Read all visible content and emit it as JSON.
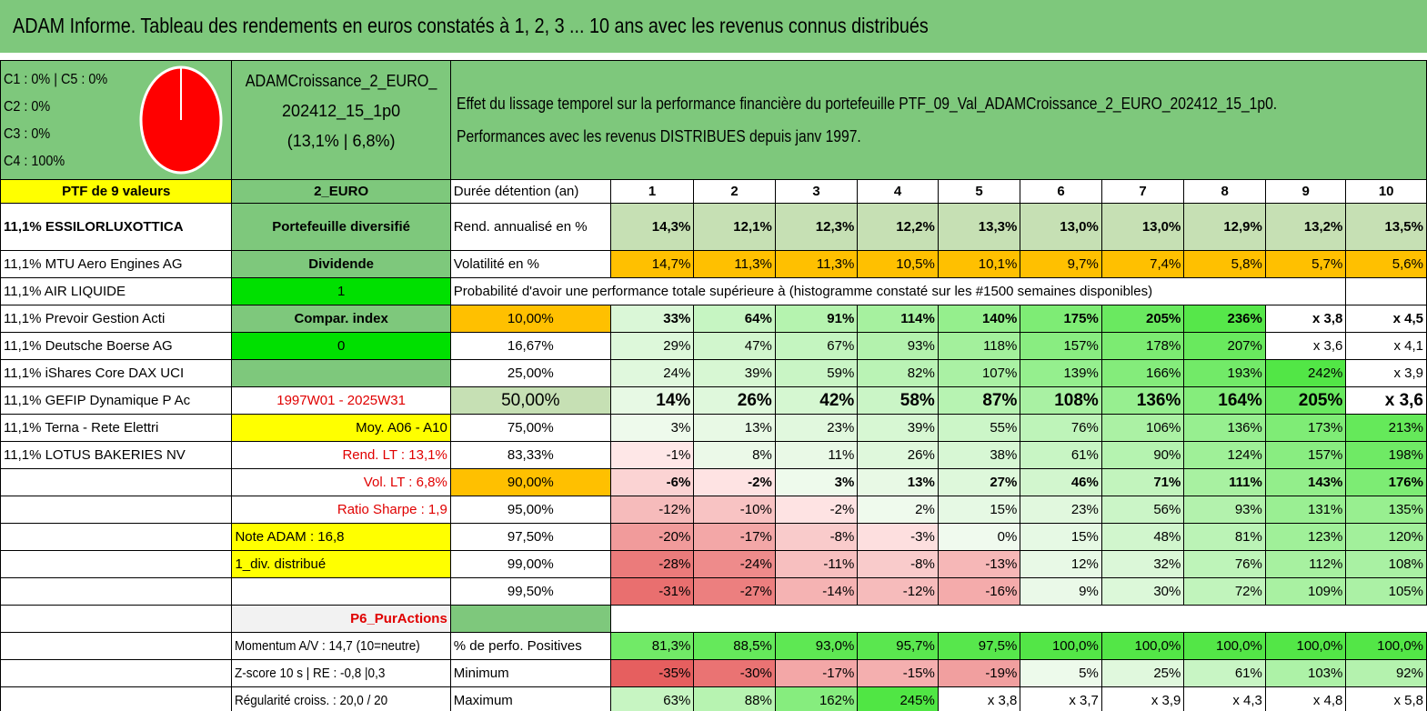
{
  "title": "ADAM Informe. Tableau des rendements en euros constatés à 1, 2, 3 ... 10 ans avec les revenus connus distribués",
  "pie": {
    "legend": [
      "C1 : 0% | C5 : 0%",
      "C2 : 0%",
      "C3 : 0%",
      "C4 : 100%"
    ],
    "colors": {
      "fill": "#ff0000",
      "stroke": "#ffffff"
    }
  },
  "portfolio": {
    "name_line1": "ADAMCroissance_2_EURO_",
    "name_line2": "202412_15_1p0",
    "name_line3": "(13,1% | 6,8%)"
  },
  "effect": {
    "line1": "Effet du lissage temporel sur la performance financière du portefeuille PTF_09_Val_ADAMCroissance_2_EURO_202412_15_1p0.",
    "line2": "Performances avec les revenus DISTRIBUES depuis janv 1997."
  },
  "years": [
    "1",
    "2",
    "3",
    "4",
    "5",
    "6",
    "7",
    "8",
    "9",
    "10"
  ],
  "left_col": [
    "PTF de 9 valeurs",
    "11,1% ESSILORLUXOTTICA",
    "11,1% MTU Aero Engines AG",
    "11,1% AIR LIQUIDE",
    "11,1% Prevoir Gestion Acti",
    "11,1% Deutsche Boerse AG",
    "11,1% iShares Core DAX UCI",
    "11,1% GEFIP Dynamique P Ac",
    "11,1% Terna - Rete Elettri",
    "11,1% LOTUS BAKERIES NV"
  ],
  "mid_col": [
    "2_EURO",
    "Portefeuille diversifié",
    "Dividende",
    "1",
    "Compar. index",
    "0",
    "",
    "1997W01 - 2025W31",
    "Moy. A06 - A10",
    "Rend. LT : 13,1%",
    "Vol. LT : 6,8%",
    "Ratio Sharpe : 1,9",
    "Note ADAM : 16,8",
    "1_div. distribué",
    "",
    "P6_PurActions",
    "Momentum A/V : 14,7 (10=neutre)",
    "Z-score 10 s | RE : -0,8 |0,3",
    "Régularité croiss. : 20,0 / 20"
  ],
  "labels": {
    "duration": "Durée détention (an)",
    "rend": "Rend. annualisé en %",
    "vol": "Volatilité en %",
    "proba": "Probabilité d'avoir une performance totale supérieure à (histogramme constaté sur les #1500 semaines disponibles)",
    "positives": "% de perfo. Positives",
    "minimum": "Minimum",
    "maximum": "Maximum"
  },
  "rend": [
    "14,3%",
    "12,1%",
    "12,3%",
    "12,2%",
    "13,3%",
    "13,0%",
    "13,0%",
    "12,9%",
    "13,2%",
    "13,5%"
  ],
  "vol": [
    "14,7%",
    "11,3%",
    "11,3%",
    "10,5%",
    "10,1%",
    "9,7%",
    "7,4%",
    "5,8%",
    "5,7%",
    "5,6%"
  ],
  "prob_rows": [
    {
      "p": "10,00%",
      "v": [
        "33%",
        "64%",
        "91%",
        "114%",
        "140%",
        "175%",
        "205%",
        "236%",
        "x 3,8",
        "x 4,5"
      ]
    },
    {
      "p": "16,67%",
      "v": [
        "29%",
        "47%",
        "67%",
        "93%",
        "118%",
        "157%",
        "178%",
        "207%",
        "x 3,6",
        "x 4,1"
      ]
    },
    {
      "p": "25,00%",
      "v": [
        "24%",
        "39%",
        "59%",
        "82%",
        "107%",
        "139%",
        "166%",
        "193%",
        "242%",
        "x 3,9"
      ]
    },
    {
      "p": "50,00%",
      "v": [
        "14%",
        "26%",
        "42%",
        "58%",
        "87%",
        "108%",
        "136%",
        "164%",
        "205%",
        "x 3,6"
      ]
    },
    {
      "p": "75,00%",
      "v": [
        "3%",
        "13%",
        "23%",
        "39%",
        "55%",
        "76%",
        "106%",
        "136%",
        "173%",
        "213%"
      ]
    },
    {
      "p": "83,33%",
      "v": [
        "-1%",
        "8%",
        "11%",
        "26%",
        "38%",
        "61%",
        "90%",
        "124%",
        "157%",
        "198%"
      ]
    },
    {
      "p": "90,00%",
      "v": [
        "-6%",
        "-2%",
        "3%",
        "13%",
        "27%",
        "46%",
        "71%",
        "111%",
        "143%",
        "176%"
      ]
    },
    {
      "p": "95,00%",
      "v": [
        "-12%",
        "-10%",
        "-2%",
        "2%",
        "15%",
        "23%",
        "56%",
        "93%",
        "131%",
        "135%"
      ]
    },
    {
      "p": "97,50%",
      "v": [
        "-20%",
        "-17%",
        "-8%",
        "-3%",
        "0%",
        "15%",
        "48%",
        "81%",
        "123%",
        "120%"
      ]
    },
    {
      "p": "99,00%",
      "v": [
        "-28%",
        "-24%",
        "-11%",
        "-8%",
        "-13%",
        "12%",
        "32%",
        "76%",
        "112%",
        "108%"
      ]
    },
    {
      "p": "99,50%",
      "v": [
        "-31%",
        "-27%",
        "-14%",
        "-12%",
        "-16%",
        "9%",
        "30%",
        "72%",
        "109%",
        "105%"
      ]
    }
  ],
  "positives": [
    "81,3%",
    "88,5%",
    "93,0%",
    "95,7%",
    "97,5%",
    "100,0%",
    "100,0%",
    "100,0%",
    "100,0%",
    "100,0%"
  ],
  "minimum": [
    "-35%",
    "-30%",
    "-17%",
    "-15%",
    "-19%",
    "5%",
    "25%",
    "61%",
    "103%",
    "92%"
  ],
  "maximum": [
    "63%",
    "88%",
    "162%",
    "245%",
    "x 3,8",
    "x 3,7",
    "x 3,9",
    "x 4,3",
    "x 4,8",
    "x 5,8"
  ],
  "colors": {
    "header_green": "#7ec87c",
    "yellow": "#ffff00",
    "orange": "#ffc000",
    "bright_green": "#00e000",
    "red_text": "#e00000",
    "rend_green": "#c6e0b4"
  }
}
